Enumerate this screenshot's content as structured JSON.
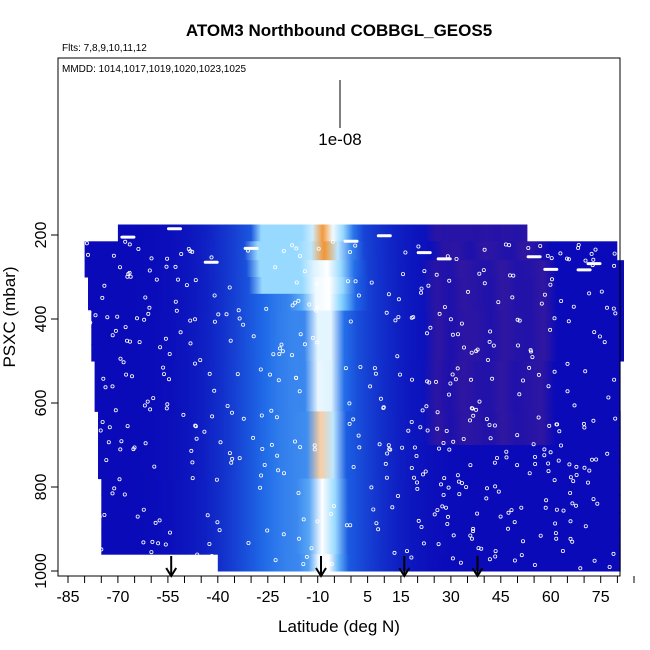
{
  "chart_data": {
    "type": "heatmap",
    "title": "ATOM3 Northbound COBBGL_GEOS5",
    "subtitle_flights": "Flts: 7,8,9,10,11,12",
    "annotation_dates": "MMDD: 1014,1017,1019,1020,1023,1025",
    "scale_label": "1e-08",
    "xlabel": "Latitude (deg N)",
    "ylabel": "PSXC (mbar)",
    "xlim": [
      -85,
      85
    ],
    "ylim": [
      1000,
      50
    ],
    "y_reversed": true,
    "x_ticks": [
      -85,
      -70,
      -55,
      -40,
      -25,
      -10,
      5,
      15,
      30,
      45,
      60,
      75
    ],
    "y_ticks": [
      200,
      400,
      600,
      800,
      1000
    ],
    "arrow_latitudes": [
      -54,
      -9,
      16,
      38
    ],
    "colors": {
      "low": "#0a0ab8",
      "mid": "#1f6ae8",
      "light": "#7ed0ff",
      "white": "#ffffff",
      "peak": "#f07a00",
      "north": "#3a1a9a"
    },
    "bands": [
      {
        "p_top": 175,
        "p_bot": 215,
        "lat_min": -70,
        "lat_max": 53
      },
      {
        "p_top": 215,
        "p_bot": 260,
        "lat_min": -80,
        "lat_max": 80
      },
      {
        "p_top": 260,
        "p_bot": 300,
        "lat_min": -80,
        "lat_max": 82
      },
      {
        "p_top": 300,
        "p_bot": 340,
        "lat_min": -79,
        "lat_max": 82
      },
      {
        "p_top": 340,
        "p_bot": 380,
        "lat_min": -79,
        "lat_max": 82
      },
      {
        "p_top": 380,
        "p_bot": 420,
        "lat_min": -78,
        "lat_max": 82
      },
      {
        "p_top": 420,
        "p_bot": 460,
        "lat_min": -78,
        "lat_max": 82
      },
      {
        "p_top": 460,
        "p_bot": 500,
        "lat_min": -78,
        "lat_max": 82
      },
      {
        "p_top": 500,
        "p_bot": 540,
        "lat_min": -77,
        "lat_max": 81
      },
      {
        "p_top": 540,
        "p_bot": 580,
        "lat_min": -77,
        "lat_max": 81
      },
      {
        "p_top": 580,
        "p_bot": 620,
        "lat_min": -77,
        "lat_max": 81
      },
      {
        "p_top": 620,
        "p_bot": 660,
        "lat_min": -76,
        "lat_max": 81
      },
      {
        "p_top": 660,
        "p_bot": 700,
        "lat_min": -76,
        "lat_max": 81
      },
      {
        "p_top": 700,
        "p_bot": 740,
        "lat_min": -76,
        "lat_max": 81
      },
      {
        "p_top": 740,
        "p_bot": 780,
        "lat_min": -76,
        "lat_max": 81
      },
      {
        "p_top": 780,
        "p_bot": 820,
        "lat_min": -75,
        "lat_max": 81
      },
      {
        "p_top": 820,
        "p_bot": 860,
        "lat_min": -75,
        "lat_max": 81
      },
      {
        "p_top": 860,
        "p_bot": 900,
        "lat_min": -75,
        "lat_max": 81
      },
      {
        "p_top": 900,
        "p_bot": 940,
        "lat_min": -75,
        "lat_max": 81
      },
      {
        "p_top": 940,
        "p_bot": 960,
        "lat_min": -75,
        "lat_max": 81
      },
      {
        "p_top": 960,
        "p_bot": 1000,
        "lat_min": -40,
        "lat_max": 81
      }
    ]
  }
}
